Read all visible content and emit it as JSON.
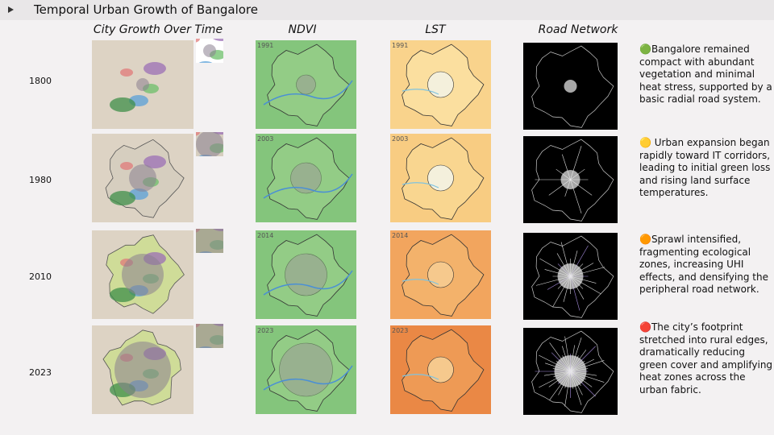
{
  "header": {
    "title": "Temporal Urban Growth of Bangalore"
  },
  "columns": [
    "City Growth Over Time",
    "NDVI",
    "LST",
    "Road Network"
  ],
  "rows": [
    {
      "year": "1800",
      "map_year": "1991",
      "description": "🟢Bangalore remained compact with abundant vegetation and minimal heat stress, supported by a basic radial road system."
    },
    {
      "year": "1980",
      "map_year": "2003",
      "description": "🟡 Urban expansion began rapidly toward IT corridors, leading to initial green loss and rising land surface temperatures."
    },
    {
      "year": "2010",
      "map_year": "2014",
      "description": "🟠Sprawl intensified, fragmenting ecological zones, increasing UHI effects, and densifying the peripheral road network."
    },
    {
      "year": "2023",
      "map_year": "2023",
      "description": "🔴The city’s footprint stretched into rural edges, dramatically reducing green cover and amplifying heat zones across the urban fabric."
    }
  ]
}
